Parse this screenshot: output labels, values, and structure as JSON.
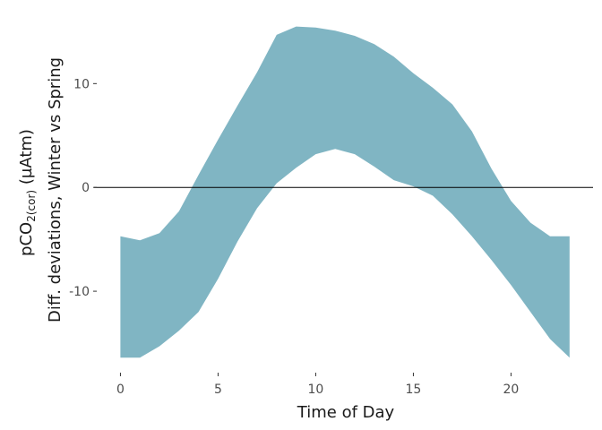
{
  "chart_data": {
    "type": "area",
    "xlabel": "Time of Day",
    "ylabel_line1_base": "pCO",
    "ylabel_line1_sub1": "2",
    "ylabel_line1_sub2": "(cor)",
    "ylabel_line1_unit": " (µAtm)",
    "ylabel_line2": "Diff. deviations, Winter vs Spring",
    "xlim": [
      -0.8,
      24.2
    ],
    "ylim": [
      -17.5,
      16.5
    ],
    "x_ticks": [
      0,
      5,
      10,
      15,
      20
    ],
    "x_tick_labels": [
      "0",
      "5",
      "10",
      "15",
      "20"
    ],
    "y_ticks": [
      -10,
      0,
      10
    ],
    "y_tick_labels": [
      "-10",
      "0",
      "10"
    ],
    "hline": 0,
    "grid": false,
    "fill_color": "#80b5c3",
    "line_color": "#000000",
    "x": [
      0,
      1,
      2,
      3,
      4,
      5,
      6,
      7,
      8,
      9,
      10,
      11,
      12,
      13,
      14,
      15,
      16,
      17,
      18,
      19,
      20,
      21,
      22,
      23
    ],
    "upper": [
      -4.7,
      -5.1,
      -4.4,
      -2.3,
      1.2,
      4.6,
      7.9,
      11.1,
      14.7,
      15.5,
      15.4,
      15.1,
      14.6,
      13.8,
      12.6,
      11.0,
      9.6,
      8.0,
      5.4,
      1.8,
      -1.3,
      -3.4,
      -4.7,
      -4.7
    ],
    "lower": [
      -16.4,
      -16.4,
      -15.3,
      -13.8,
      -12.0,
      -8.8,
      -5.2,
      -2.0,
      0.4,
      1.9,
      3.2,
      3.7,
      3.2,
      2.0,
      0.7,
      0.1,
      -0.8,
      -2.6,
      -4.7,
      -7.0,
      -9.4,
      -12.0,
      -14.6,
      -16.4
    ]
  }
}
